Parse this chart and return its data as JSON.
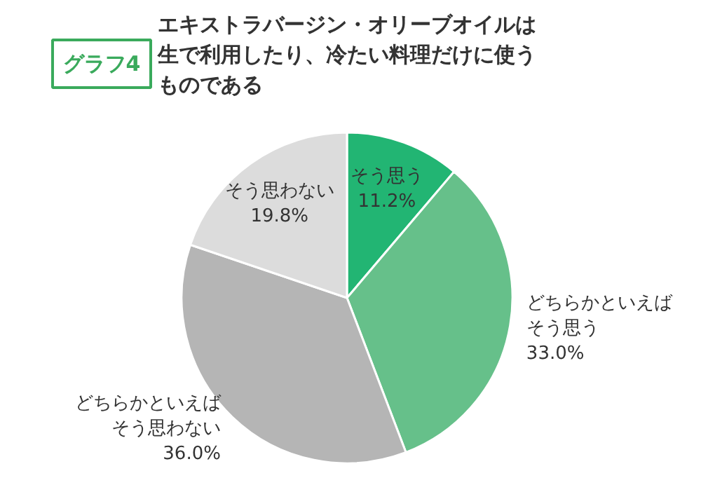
{
  "chart_data": {
    "type": "pie",
    "title": "エキストラバージン・オリーブオイルは生で利用したり、冷たい料理だけに使うものである",
    "annotations": [
      "グラフ4"
    ],
    "categories": [
      "そう思う",
      "どちらかといえばそう思う",
      "どちらかといえばそう思わない",
      "そう思わない"
    ],
    "values": [
      11.2,
      33.0,
      36.0,
      19.8
    ],
    "value_labels": [
      "11.2%",
      "33.0%",
      "36.0%",
      "19.8%"
    ],
    "colors": [
      "#22b573",
      "#66c08a",
      "#b5b5b5",
      "#dcdcdc"
    ]
  }
}
